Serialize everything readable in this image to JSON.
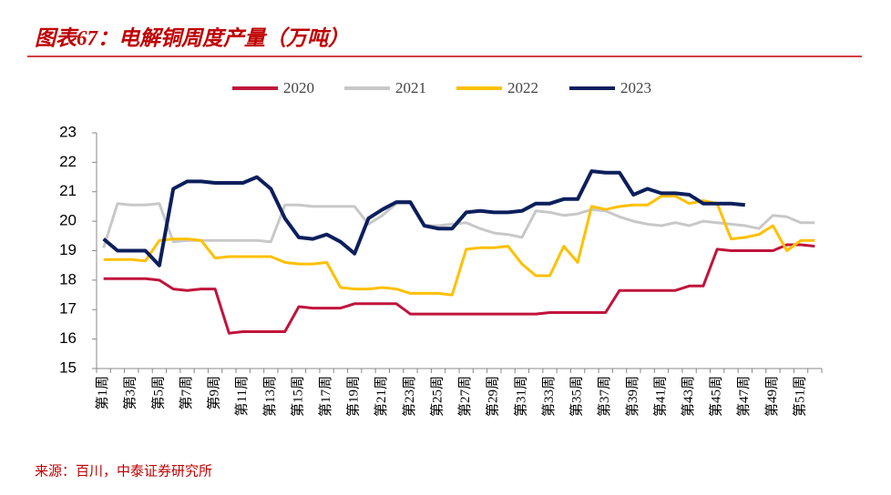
{
  "chart_data": {
    "type": "line",
    "title": "图表67：电解铜周度产量（万吨）",
    "source": "来源：百川，中泰证券研究所",
    "categories": [
      "第1周",
      null,
      "第3周",
      null,
      "第5周",
      null,
      "第7周",
      null,
      "第9周",
      null,
      "第11周",
      null,
      "第13周",
      null,
      "第15周",
      null,
      "第17周",
      null,
      "第19周",
      null,
      "第21周",
      null,
      "第23周",
      null,
      "第25周",
      null,
      "第27周",
      null,
      "第29周",
      null,
      "第31周",
      null,
      "第33周",
      null,
      "第35周",
      null,
      "第37周",
      null,
      "第39周",
      null,
      "第41周",
      null,
      "第43周",
      null,
      "第45周",
      null,
      "第47周",
      null,
      "第49周",
      null,
      "第51周",
      null
    ],
    "series": [
      {
        "name": "2020",
        "color": "#c0143c",
        "values": [
          18.05,
          18.05,
          18.05,
          18.05,
          18.0,
          17.7,
          17.65,
          17.7,
          17.7,
          16.2,
          16.25,
          16.25,
          16.25,
          16.25,
          17.1,
          17.05,
          17.05,
          17.05,
          17.2,
          17.2,
          17.2,
          17.2,
          16.85,
          16.85,
          16.85,
          16.85,
          16.85,
          16.85,
          16.85,
          16.85,
          16.85,
          16.85,
          16.9,
          16.9,
          16.9,
          16.9,
          16.9,
          17.65,
          17.65,
          17.65,
          17.65,
          17.65,
          17.8,
          17.8,
          19.05,
          19.0,
          19.0,
          19.0,
          19.0,
          19.2,
          19.2,
          19.15
        ]
      },
      {
        "name": "2021",
        "color": "#c8c8c8",
        "values": [
          19.1,
          20.6,
          20.55,
          20.55,
          20.6,
          19.3,
          19.35,
          19.35,
          19.35,
          19.35,
          19.35,
          19.35,
          19.3,
          20.55,
          20.55,
          20.5,
          20.5,
          20.5,
          20.5,
          19.9,
          20.2,
          20.6,
          20.6,
          19.85,
          19.85,
          19.9,
          19.95,
          19.75,
          19.6,
          19.55,
          19.45,
          20.35,
          20.3,
          20.2,
          20.25,
          20.4,
          20.35,
          20.15,
          20.0,
          19.9,
          19.85,
          19.95,
          19.85,
          20.0,
          19.95,
          19.9,
          19.85,
          19.75,
          20.2,
          20.15,
          19.95,
          19.95
        ]
      },
      {
        "name": "2022",
        "color": "#ffc000",
        "values": [
          18.7,
          18.7,
          18.7,
          18.65,
          19.35,
          19.4,
          19.4,
          19.35,
          18.75,
          18.8,
          18.8,
          18.8,
          18.8,
          18.6,
          18.55,
          18.55,
          18.6,
          17.75,
          17.7,
          17.7,
          17.75,
          17.7,
          17.55,
          17.55,
          17.55,
          17.5,
          19.05,
          19.1,
          19.1,
          19.15,
          18.55,
          18.15,
          18.15,
          19.15,
          18.6,
          20.5,
          20.4,
          20.5,
          20.55,
          20.55,
          20.85,
          20.85,
          20.6,
          20.7,
          20.6,
          19.4,
          19.45,
          19.55,
          19.85,
          19.0,
          19.35,
          19.35
        ]
      },
      {
        "name": "2023",
        "color": "#0c1f5c",
        "values": [
          19.4,
          19.0,
          19.0,
          19.0,
          18.5,
          21.1,
          21.35,
          21.35,
          21.3,
          21.3,
          21.3,
          21.5,
          21.1,
          20.1,
          19.45,
          19.4,
          19.55,
          19.3,
          18.9,
          20.1,
          20.4,
          20.65,
          20.65,
          19.85,
          19.75,
          19.75,
          20.3,
          20.35,
          20.3,
          20.3,
          20.35,
          20.6,
          20.6,
          20.75,
          20.75,
          21.7,
          21.65,
          21.65,
          20.9,
          21.1,
          20.95,
          20.95,
          20.9,
          20.6,
          20.6,
          20.6,
          20.55,
          null,
          null,
          null,
          null,
          null
        ]
      }
    ],
    "ylim": [
      15,
      23
    ],
    "yticks": [
      15,
      16,
      17,
      18,
      19,
      20,
      21,
      22,
      23
    ],
    "grid": false,
    "legend": "top"
  }
}
